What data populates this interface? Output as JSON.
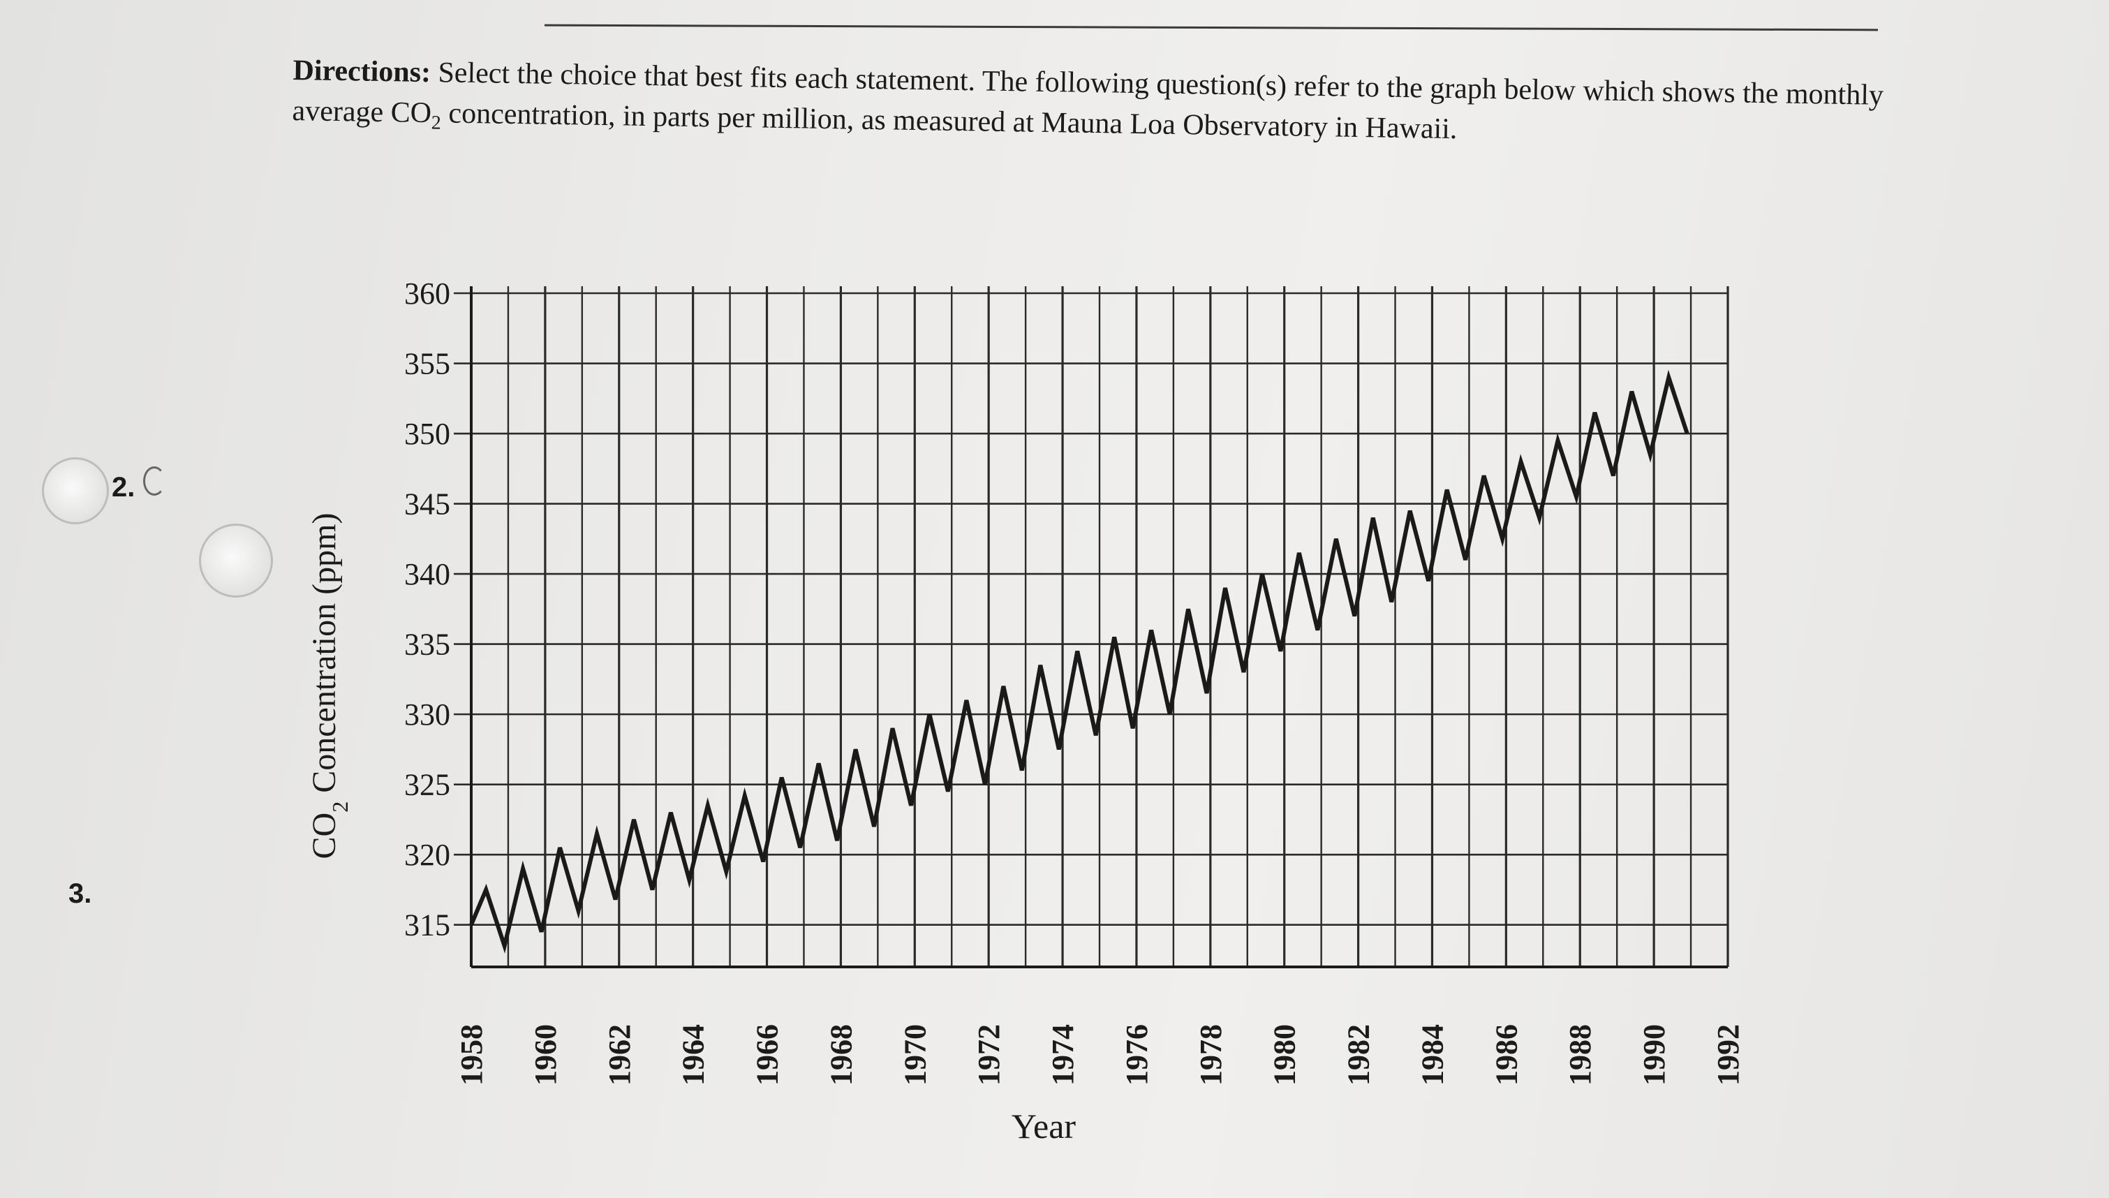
{
  "directions": {
    "label": "Directions:",
    "text_part1": "Select the choice that best fits each statement. The following question(s) refer to the graph below which shows the monthly average CO",
    "subscript": "2",
    "text_part2": " concentration, in parts per million, as measured at Mauna Loa Observatory in Hawaii."
  },
  "question_numbers": [
    "2.",
    "3."
  ],
  "chart_data": {
    "type": "line",
    "title": "",
    "xlabel": "Year",
    "ylabel_main": "CO",
    "ylabel_sub": "2",
    "ylabel_rest": " Concentration (ppm)",
    "xlim": [
      1958,
      1992
    ],
    "ylim": [
      312,
      360
    ],
    "x_ticks": [
      "1958",
      "1960",
      "1962",
      "1964",
      "1966",
      "1968",
      "1970",
      "1972",
      "1974",
      "1976",
      "1978",
      "1980",
      "1982",
      "1984",
      "1986",
      "1988",
      "1990",
      "1992"
    ],
    "y_ticks": [
      315,
      320,
      325,
      330,
      335,
      340,
      345,
      350,
      355,
      360
    ],
    "series": [
      {
        "values_note_free": true,
        "x": [
          1958,
          1958.4,
          1958.9,
          1959.4,
          1959.9,
          1960.4,
          1960.9,
          1961.4,
          1961.9,
          1962.4,
          1962.9,
          1963.4,
          1963.9,
          1964.4,
          1964.9,
          1965.4,
          1965.9,
          1966.4,
          1966.9,
          1967.4,
          1967.9,
          1968.4,
          1968.9,
          1969.4,
          1969.9,
          1970.4,
          1970.9,
          1971.4,
          1971.9,
          1972.4,
          1972.9,
          1973.4,
          1973.9,
          1974.4,
          1974.9,
          1975.4,
          1975.9,
          1976.4,
          1976.9,
          1977.4,
          1977.9,
          1978.4,
          1978.9,
          1979.4,
          1979.9,
          1980.4,
          1980.9,
          1981.4,
          1981.9,
          1982.4,
          1982.9,
          1983.4,
          1983.9,
          1984.4,
          1984.9,
          1985.4,
          1985.9,
          1986.4,
          1986.9,
          1987.4,
          1987.9,
          1988.4,
          1988.9,
          1989.4,
          1989.9,
          1990.4,
          1990.9
        ],
        "y": [
          315,
          317.5,
          313.5,
          319,
          314.5,
          320.5,
          316,
          321.5,
          316.8,
          322.5,
          317.5,
          323,
          318.2,
          323.5,
          318.8,
          324.2,
          319.5,
          325.5,
          320.5,
          326.5,
          321,
          327.5,
          322,
          329,
          323.5,
          330,
          324.5,
          331,
          325,
          332,
          326,
          333.5,
          327.5,
          334.5,
          328.5,
          335.5,
          329,
          336,
          330,
          337.5,
          331.5,
          339,
          333,
          340,
          334.5,
          341.5,
          336,
          342.5,
          337,
          344,
          338,
          344.5,
          339.5,
          346,
          341,
          347,
          342.5,
          348,
          344,
          349.5,
          345.5,
          351.5,
          347,
          353,
          348.5,
          354,
          350
        ]
      }
    ]
  }
}
